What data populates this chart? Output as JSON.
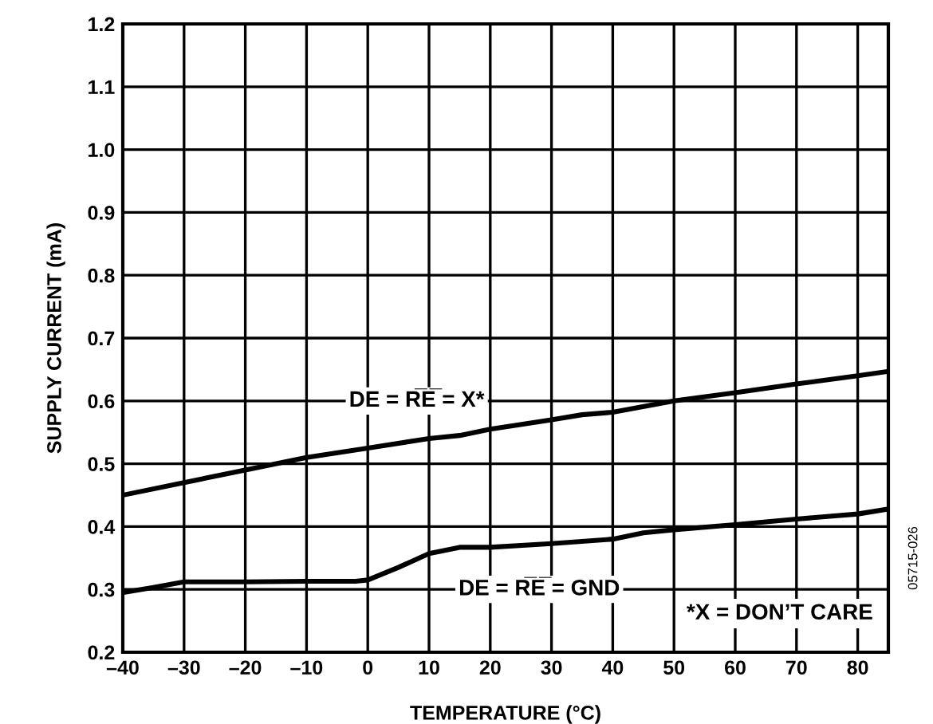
{
  "chart_data": {
    "type": "line",
    "xlabel": "TEMPERATURE (°C)",
    "ylabel": "SUPPLY CURRENT (mA)",
    "xlim": [
      -40,
      85
    ],
    "ylim": [
      0.2,
      1.2
    ],
    "xticks": [
      {
        "value": -40,
        "label": "–40"
      },
      {
        "value": -30,
        "label": "–30"
      },
      {
        "value": -20,
        "label": "–20"
      },
      {
        "value": -10,
        "label": "–10"
      },
      0,
      10,
      20,
      30,
      40,
      50,
      60,
      70,
      80
    ],
    "yticks": [
      {
        "value": 0.2,
        "label": "0.2"
      },
      {
        "value": 0.3,
        "label": "0.3"
      },
      {
        "value": 0.4,
        "label": "0.4"
      },
      {
        "value": 0.5,
        "label": "0.5"
      },
      {
        "value": 0.6,
        "label": "0.6"
      },
      {
        "value": 0.7,
        "label": "0.7"
      },
      {
        "value": 0.8,
        "label": "0.8"
      },
      {
        "value": 0.9,
        "label": "0.9"
      },
      {
        "value": 1.0,
        "label": "1.0"
      },
      {
        "value": 1.1,
        "label": "1.1"
      },
      {
        "value": 1.2,
        "label": "1.2"
      }
    ],
    "grid": true,
    "marker": "none",
    "line_style": "solid",
    "series": [
      {
        "color": "#000000",
        "x": [
          -40,
          -30,
          -20,
          -10,
          0,
          10,
          15,
          20,
          30,
          35,
          40,
          50,
          60,
          70,
          80,
          85
        ],
        "values": [
          0.45,
          0.47,
          0.49,
          0.51,
          0.525,
          0.54,
          0.545,
          0.555,
          0.57,
          0.578,
          0.582,
          0.6,
          0.613,
          0.627,
          0.64,
          0.647
        ]
      },
      {
        "color": "#000000",
        "x": [
          -40,
          -35,
          -30,
          -20,
          -10,
          -2,
          0,
          5,
          10,
          15,
          20,
          30,
          40,
          45,
          50,
          60,
          70,
          80,
          85
        ],
        "values": [
          0.295,
          0.303,
          0.312,
          0.312,
          0.313,
          0.313,
          0.315,
          0.335,
          0.357,
          0.367,
          0.367,
          0.373,
          0.38,
          0.39,
          0.395,
          0.403,
          0.412,
          0.42,
          0.428
        ]
      }
    ],
    "annotations": [
      "DE = R̅E̅ = X*",
      "DE = R̅E̅ = GND",
      "*X = DON’T CARE",
      "05715-026"
    ]
  }
}
